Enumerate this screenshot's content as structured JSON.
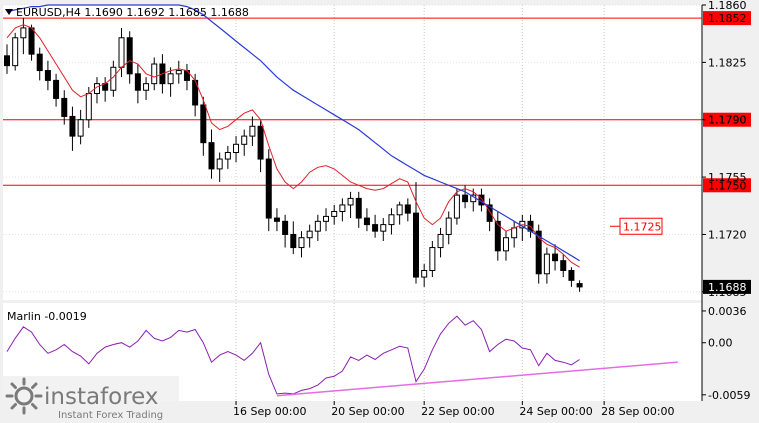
{
  "chart_data": [
    {
      "type": "candlestick",
      "header": {
        "symbol_tf": "EURUSD,H4",
        "ohlc": [
          "1.1690",
          "1.1692",
          "1.1685",
          "1.1688"
        ]
      },
      "ylim": [
        1.168,
        1.186
      ],
      "price_ticks": [
        "1.1860",
        "1.1825",
        "1.1790",
        "1.1755",
        "1.1720",
        "1.1685"
      ],
      "x_ticks": [
        "16 Sep 00:00",
        "20 Sep 00:00",
        "22 Sep 00:00",
        "24 Sep 00:00",
        "28 Sep 00:00"
      ],
      "levels": [
        {
          "value": 1.1852,
          "label": "1.1852",
          "color": "#ff0000"
        },
        {
          "value": 1.179,
          "label": "1.1790",
          "color": "#ff0000"
        },
        {
          "value": 1.175,
          "label": "1.1750",
          "color": "#ff0000"
        }
      ],
      "target": {
        "value": 1.1725,
        "label": "1.1725",
        "color": "#ff0000"
      },
      "current": {
        "value": 1.1688,
        "label": "1.1688"
      },
      "candles": [
        [
          1.1829,
          1.1836,
          1.1818,
          1.1823
        ],
        [
          1.1823,
          1.1843,
          1.182,
          1.184
        ],
        [
          1.184,
          1.1852,
          1.183,
          1.1846
        ],
        [
          1.1846,
          1.1848,
          1.1826,
          1.183
        ],
        [
          1.183,
          1.1834,
          1.1814,
          1.182
        ],
        [
          1.182,
          1.1826,
          1.1808,
          1.1814
        ],
        [
          1.1814,
          1.1818,
          1.1798,
          1.1803
        ],
        [
          1.1803,
          1.1808,
          1.1787,
          1.1792
        ],
        [
          1.1792,
          1.1798,
          1.1771,
          1.178
        ],
        [
          1.178,
          1.1796,
          1.1775,
          1.179
        ],
        [
          1.179,
          1.181,
          1.1785,
          1.1806
        ],
        [
          1.1806,
          1.1816,
          1.18,
          1.1812
        ],
        [
          1.1812,
          1.1816,
          1.1801,
          1.1808
        ],
        [
          1.1808,
          1.1826,
          1.1804,
          1.1822
        ],
        [
          1.1822,
          1.1846,
          1.1816,
          1.184
        ],
        [
          1.184,
          1.1844,
          1.1812,
          1.1818
        ],
        [
          1.1818,
          1.1824,
          1.18,
          1.1808
        ],
        [
          1.1808,
          1.1816,
          1.1802,
          1.1812
        ],
        [
          1.1812,
          1.1828,
          1.1808,
          1.1824
        ],
        [
          1.1824,
          1.183,
          1.1806,
          1.1812
        ],
        [
          1.1812,
          1.1822,
          1.1804,
          1.1818
        ],
        [
          1.1818,
          1.1826,
          1.1812,
          1.182
        ],
        [
          1.182,
          1.1824,
          1.1808,
          1.1814
        ],
        [
          1.1814,
          1.1818,
          1.1792,
          1.1799
        ],
        [
          1.1799,
          1.1804,
          1.1768,
          1.1776
        ],
        [
          1.1776,
          1.1784,
          1.1754,
          1.176
        ],
        [
          1.176,
          1.177,
          1.1752,
          1.1766
        ],
        [
          1.1766,
          1.1774,
          1.176,
          1.177
        ],
        [
          1.177,
          1.178,
          1.1764,
          1.1775
        ],
        [
          1.1775,
          1.1784,
          1.1768,
          1.178
        ],
        [
          1.178,
          1.1792,
          1.1774,
          1.1786
        ],
        [
          1.1786,
          1.179,
          1.1758,
          1.1766
        ],
        [
          1.1766,
          1.1772,
          1.1722,
          1.173
        ],
        [
          1.173,
          1.1736,
          1.1722,
          1.1728
        ],
        [
          1.1728,
          1.1732,
          1.1712,
          1.172
        ],
        [
          1.172,
          1.1728,
          1.1708,
          1.1712
        ],
        [
          1.1712,
          1.1722,
          1.1706,
          1.1718
        ],
        [
          1.1718,
          1.1726,
          1.1712,
          1.1722
        ],
        [
          1.1722,
          1.1732,
          1.1716,
          1.1728
        ],
        [
          1.1728,
          1.1736,
          1.1722,
          1.1731
        ],
        [
          1.1731,
          1.1738,
          1.1726,
          1.1734
        ],
        [
          1.1734,
          1.1742,
          1.1728,
          1.1738
        ],
        [
          1.1738,
          1.1746,
          1.173,
          1.1742
        ],
        [
          1.1742,
          1.1746,
          1.1724,
          1.173
        ],
        [
          1.173,
          1.1736,
          1.1722,
          1.1726
        ],
        [
          1.1726,
          1.1732,
          1.1718,
          1.1722
        ],
        [
          1.1722,
          1.173,
          1.1716,
          1.1726
        ],
        [
          1.1726,
          1.1736,
          1.172,
          1.1732
        ],
        [
          1.1732,
          1.174,
          1.1726,
          1.1738
        ],
        [
          1.1738,
          1.1742,
          1.1728,
          1.1733
        ],
        [
          1.1733,
          1.1752,
          1.169,
          1.1694
        ],
        [
          1.1694,
          1.1702,
          1.1688,
          1.1698
        ],
        [
          1.1698,
          1.1716,
          1.1694,
          1.1712
        ],
        [
          1.1712,
          1.1724,
          1.1706,
          1.172
        ],
        [
          1.172,
          1.1734,
          1.1714,
          1.173
        ],
        [
          1.173,
          1.1748,
          1.1726,
          1.1744
        ],
        [
          1.1744,
          1.175,
          1.1736,
          1.174
        ],
        [
          1.174,
          1.1748,
          1.1734,
          1.1744
        ],
        [
          1.1744,
          1.1748,
          1.1734,
          1.1738
        ],
        [
          1.1738,
          1.1742,
          1.1722,
          1.1728
        ],
        [
          1.1728,
          1.1734,
          1.1704,
          1.171
        ],
        [
          1.171,
          1.1722,
          1.1704,
          1.1718
        ],
        [
          1.1718,
          1.1728,
          1.1712,
          1.1724
        ],
        [
          1.1724,
          1.1732,
          1.1716,
          1.1728
        ],
        [
          1.1728,
          1.1732,
          1.1718,
          1.1722
        ],
        [
          1.1722,
          1.1726,
          1.169,
          1.1696
        ],
        [
          1.1696,
          1.1712,
          1.169,
          1.1708
        ],
        [
          1.1708,
          1.1714,
          1.1698,
          1.1704
        ],
        [
          1.1704,
          1.1708,
          1.1694,
          1.1698
        ],
        [
          1.1698,
          1.17,
          1.1688,
          1.1692
        ],
        [
          1.169,
          1.1692,
          1.1685,
          1.1688
        ]
      ],
      "ma_red": [
        1.184,
        1.1846,
        1.1848,
        1.1846,
        1.184,
        1.1832,
        1.1824,
        1.1816,
        1.1808,
        1.1804,
        1.1806,
        1.181,
        1.1812,
        1.1816,
        1.1822,
        1.1826,
        1.1824,
        1.1818,
        1.1816,
        1.1818,
        1.182,
        1.1821,
        1.182,
        1.1814,
        1.1802,
        1.1788,
        1.1784,
        1.1786,
        1.179,
        1.1794,
        1.1796,
        1.179,
        1.1774,
        1.176,
        1.1752,
        1.1748,
        1.1752,
        1.1758,
        1.1761,
        1.1762,
        1.176,
        1.1756,
        1.1752,
        1.175,
        1.1748,
        1.1747,
        1.1748,
        1.1751,
        1.1754,
        1.1752,
        1.174,
        1.173,
        1.1726,
        1.173,
        1.174,
        1.1746,
        1.1748,
        1.1746,
        1.1742,
        1.1734,
        1.1726,
        1.1722,
        1.1724,
        1.1726,
        1.1725,
        1.1718,
        1.1714,
        1.1712,
        1.1708,
        1.1703,
        1.17
      ],
      "ma_blue": [
        1.1856,
        1.1857,
        1.1858,
        1.1859,
        1.1859,
        1.186,
        1.186,
        1.186,
        1.186,
        1.186,
        1.186,
        1.186,
        1.186,
        1.186,
        1.186,
        1.186,
        1.186,
        1.186,
        1.186,
        1.186,
        1.186,
        1.186,
        1.1859,
        1.1857,
        1.1854,
        1.185,
        1.1846,
        1.1842,
        1.1838,
        1.1834,
        1.183,
        1.1826,
        1.1821,
        1.1816,
        1.1812,
        1.1808,
        1.1805,
        1.1802,
        1.1799,
        1.1796,
        1.1793,
        1.179,
        1.1787,
        1.1784,
        1.178,
        1.1776,
        1.1772,
        1.1768,
        1.1765,
        1.1762,
        1.1759,
        1.1756,
        1.1754,
        1.1752,
        1.175,
        1.1748,
        1.1746,
        1.1743,
        1.174,
        1.1737,
        1.1734,
        1.1731,
        1.1728,
        1.1725,
        1.1722,
        1.1719,
        1.1716,
        1.1713,
        1.171,
        1.1707,
        1.1704
      ]
    },
    {
      "type": "line",
      "name": "Marlin",
      "value_label": "-0.0019",
      "ylim": [
        -0.0066,
        0.0045
      ],
      "y_ticks": [
        "0.0036",
        "0.00",
        "-0.0059"
      ],
      "values": [
        -0.001,
        0.0005,
        0.0018,
        0.0012,
        -0.0002,
        -0.0012,
        -0.0008,
        -0.0002,
        -0.001,
        -0.0015,
        -0.0024,
        -0.0012,
        -0.0005,
        -0.0002,
        0.0,
        -0.0005,
        0.0002,
        0.0014,
        0.0005,
        0.0002,
        0.0006,
        0.0014,
        0.0012,
        0.0015,
        0.0,
        -0.0022,
        -0.0014,
        -0.001,
        -0.0014,
        -0.002,
        -0.0012,
        0.0,
        -0.0036,
        -0.0058,
        -0.0057,
        -0.0058,
        -0.0054,
        -0.0052,
        -0.0048,
        -0.004,
        -0.0038,
        -0.0032,
        -0.0016,
        -0.002,
        -0.0014,
        -0.0019,
        -0.0012,
        -0.0008,
        -0.0004,
        -0.0006,
        -0.0044,
        -0.003,
        -0.0008,
        0.001,
        0.0022,
        0.003,
        0.002,
        0.0025,
        0.0015,
        -0.001,
        -0.0002,
        0.0004,
        0.0002,
        -0.0006,
        -0.0008,
        -0.0026,
        -0.0012,
        -0.002,
        -0.0022,
        -0.0025,
        -0.0019
      ],
      "trendline": [
        [
          33,
          -0.006
        ],
        [
          82,
          -0.0022
        ]
      ]
    }
  ],
  "branding": {
    "brand": "instaforex",
    "tagline": "Instant Forex Trading"
  }
}
